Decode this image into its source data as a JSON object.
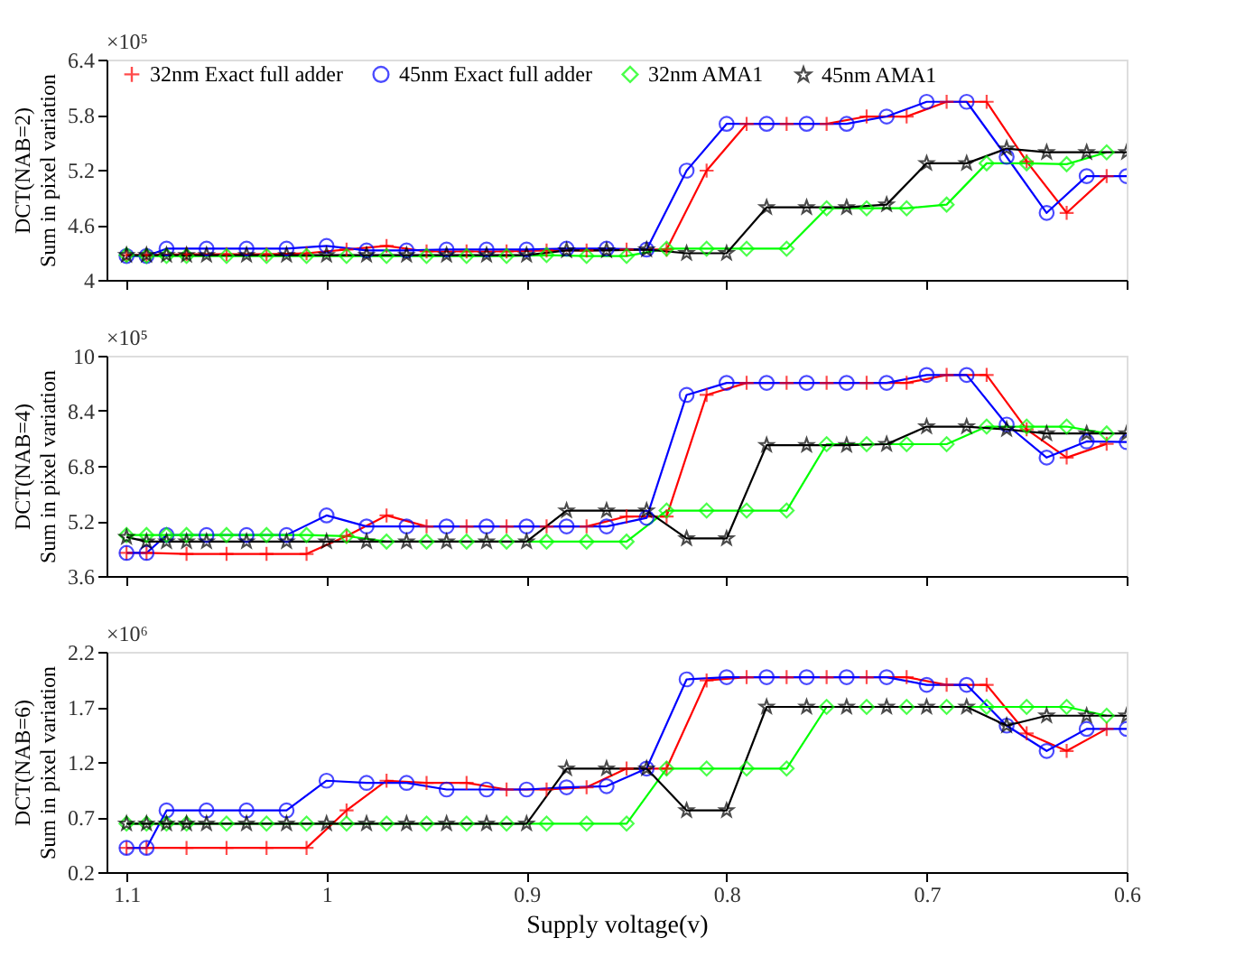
{
  "chart_data": [
    {
      "type": "line",
      "ylabel": "DCT(NAB=2)\nSum in pixel variation",
      "annotations": [
        "×10⁵"
      ],
      "xlim": [
        1.11,
        0.6
      ],
      "xticks": [
        1.1,
        1,
        0.9,
        0.8,
        0.7,
        0.6
      ],
      "ylim": [
        4,
        6.4
      ],
      "yticks": [
        4,
        4.6,
        5.2,
        5.8,
        6.4
      ],
      "tick_labels": "y",
      "legend": "top",
      "series": [
        {
          "name": "32nm Exact full adder",
          "color": "#ff0000",
          "marker": "cross",
          "x": [
            1.1,
            1.09,
            1.07,
            1.05,
            1.03,
            1.01,
            0.99,
            0.97,
            0.95,
            0.93,
            0.91,
            0.89,
            0.87,
            0.85,
            0.83,
            0.81,
            0.79,
            0.77,
            0.75,
            0.73,
            0.71,
            0.69,
            0.67,
            0.65,
            0.63,
            0.61
          ],
          "values": [
            4.27,
            4.27,
            4.28,
            4.28,
            4.28,
            4.29,
            4.33,
            4.37,
            4.31,
            4.31,
            4.31,
            4.32,
            4.32,
            4.33,
            4.33,
            5.19,
            5.7,
            5.7,
            5.7,
            5.78,
            5.78,
            5.94,
            5.94,
            5.29,
            4.73,
            5.13
          ]
        },
        {
          "name": "45nm Exact full adder",
          "color": "#0000ff",
          "marker": "circle",
          "x": [
            1.1,
            1.09,
            1.08,
            1.06,
            1.04,
            1.02,
            1.0,
            0.98,
            0.96,
            0.94,
            0.92,
            0.9,
            0.88,
            0.86,
            0.84,
            0.82,
            0.8,
            0.78,
            0.76,
            0.74,
            0.72,
            0.7,
            0.68,
            0.66,
            0.64,
            0.62,
            0.6
          ],
          "values": [
            4.26,
            4.26,
            4.34,
            4.34,
            4.34,
            4.34,
            4.37,
            4.32,
            4.32,
            4.33,
            4.33,
            4.33,
            4.34,
            4.34,
            4.33,
            5.19,
            5.7,
            5.7,
            5.7,
            5.7,
            5.78,
            5.94,
            5.94,
            5.34,
            4.73,
            5.13,
            5.13
          ]
        },
        {
          "name": "32nm AMA1",
          "color": "#00ff00",
          "marker": "diamond",
          "x": [
            1.1,
            1.09,
            1.08,
            1.07,
            1.05,
            1.03,
            1.01,
            0.99,
            0.97,
            0.95,
            0.93,
            0.91,
            0.89,
            0.87,
            0.85,
            0.83,
            0.81,
            0.79,
            0.77,
            0.75,
            0.73,
            0.71,
            0.69,
            0.67,
            0.65,
            0.63,
            0.61
          ],
          "values": [
            4.27,
            4.26,
            4.26,
            4.26,
            4.26,
            4.26,
            4.26,
            4.26,
            4.26,
            4.26,
            4.26,
            4.26,
            4.27,
            4.26,
            4.26,
            4.34,
            4.34,
            4.34,
            4.34,
            4.78,
            4.78,
            4.78,
            4.82,
            5.27,
            5.27,
            5.26,
            5.39
          ]
        },
        {
          "name": "45nm AMA1",
          "color": "#000000",
          "marker": "star",
          "x": [
            1.1,
            1.09,
            1.08,
            1.07,
            1.06,
            1.04,
            1.02,
            1.0,
            0.98,
            0.96,
            0.94,
            0.92,
            0.9,
            0.88,
            0.86,
            0.84,
            0.82,
            0.8,
            0.78,
            0.76,
            0.74,
            0.72,
            0.7,
            0.68,
            0.66,
            0.64,
            0.62,
            0.6
          ],
          "values": [
            4.27,
            4.27,
            4.27,
            4.27,
            4.27,
            4.27,
            4.27,
            4.27,
            4.27,
            4.27,
            4.27,
            4.27,
            4.27,
            4.32,
            4.32,
            4.33,
            4.29,
            4.29,
            4.79,
            4.79,
            4.79,
            4.82,
            5.27,
            5.27,
            5.43,
            5.39,
            5.39,
            5.39
          ]
        }
      ]
    },
    {
      "type": "line",
      "ylabel": "DCT(NAB=4)\nSum in pixel variation",
      "annotations": [
        "×10⁵"
      ],
      "xlim": [
        1.11,
        0.6
      ],
      "xticks": [
        1.1,
        1,
        0.9,
        0.8,
        0.7,
        0.6
      ],
      "ylim": [
        3.6,
        10
      ],
      "yticks": [
        3.6,
        5.2,
        6.8,
        8.4,
        10
      ],
      "tick_labels": "y",
      "series": [
        {
          "color": "#ff0000",
          "marker": "cross",
          "x": [
            1.1,
            1.09,
            1.07,
            1.05,
            1.03,
            1.01,
            0.99,
            0.97,
            0.95,
            0.93,
            0.91,
            0.89,
            0.87,
            0.85,
            0.83,
            0.81,
            0.79,
            0.77,
            0.75,
            0.73,
            0.71,
            0.69,
            0.67,
            0.65,
            0.63,
            0.61
          ],
          "values": [
            4.27,
            4.27,
            4.24,
            4.24,
            4.24,
            4.24,
            4.76,
            5.36,
            5.04,
            5.04,
            5.04,
            5.04,
            5.04,
            5.33,
            5.33,
            8.86,
            9.21,
            9.21,
            9.21,
            9.21,
            9.21,
            9.44,
            9.44,
            7.86,
            7.04,
            7.44
          ]
        },
        {
          "color": "#0000ff",
          "marker": "circle",
          "x": [
            1.1,
            1.09,
            1.08,
            1.06,
            1.04,
            1.02,
            1.0,
            0.98,
            0.96,
            0.94,
            0.92,
            0.9,
            0.88,
            0.86,
            0.84,
            0.82,
            0.8,
            0.78,
            0.76,
            0.74,
            0.72,
            0.7,
            0.68,
            0.66,
            0.64,
            0.62,
            0.6
          ],
          "values": [
            4.27,
            4.27,
            4.79,
            4.79,
            4.79,
            4.79,
            5.36,
            5.04,
            5.04,
            5.04,
            5.04,
            5.04,
            5.04,
            5.04,
            5.29,
            8.86,
            9.21,
            9.21,
            9.21,
            9.21,
            9.21,
            9.44,
            9.44,
            8.0,
            7.04,
            7.51,
            7.49
          ]
        },
        {
          "color": "#00ff00",
          "marker": "diamond",
          "x": [
            1.1,
            1.09,
            1.08,
            1.07,
            1.05,
            1.03,
            1.01,
            0.99,
            0.97,
            0.95,
            0.93,
            0.91,
            0.89,
            0.87,
            0.85,
            0.83,
            0.81,
            0.79,
            0.77,
            0.75,
            0.73,
            0.71,
            0.69,
            0.67,
            0.65,
            0.63,
            0.61
          ],
          "values": [
            4.79,
            4.79,
            4.79,
            4.79,
            4.79,
            4.79,
            4.79,
            4.76,
            4.6,
            4.6,
            4.6,
            4.6,
            4.6,
            4.6,
            4.6,
            5.5,
            5.5,
            5.5,
            5.5,
            7.43,
            7.43,
            7.43,
            7.43,
            7.94,
            7.94,
            7.94,
            7.74
          ]
        },
        {
          "color": "#000000",
          "marker": "star",
          "x": [
            1.1,
            1.09,
            1.08,
            1.07,
            1.06,
            1.04,
            1.02,
            1.0,
            0.98,
            0.96,
            0.94,
            0.92,
            0.9,
            0.88,
            0.86,
            0.84,
            0.82,
            0.8,
            0.78,
            0.76,
            0.74,
            0.72,
            0.7,
            0.68,
            0.66,
            0.64,
            0.62,
            0.6
          ],
          "values": [
            4.73,
            4.6,
            4.6,
            4.6,
            4.6,
            4.6,
            4.6,
            4.6,
            4.6,
            4.6,
            4.6,
            4.6,
            4.6,
            5.5,
            5.5,
            5.5,
            4.69,
            4.69,
            7.4,
            7.4,
            7.4,
            7.43,
            7.94,
            7.94,
            7.86,
            7.74,
            7.74,
            7.74
          ]
        }
      ]
    },
    {
      "type": "line",
      "ylabel": "DCT(NAB=6)\nSum in pixel variation",
      "xlabel": "Supply voltage(v)",
      "annotations": [
        "×10⁶"
      ],
      "xlim": [
        1.11,
        0.6
      ],
      "xticks": [
        1.1,
        1,
        0.9,
        0.8,
        0.7,
        0.6
      ],
      "ylim": [
        0.2,
        2.2
      ],
      "yticks": [
        0.2,
        0.7,
        1.2,
        1.7,
        2.2
      ],
      "series": [
        {
          "color": "#ff0000",
          "marker": "cross",
          "x": [
            1.1,
            1.09,
            1.07,
            1.05,
            1.03,
            1.01,
            0.99,
            0.97,
            0.95,
            0.93,
            0.91,
            0.89,
            0.87,
            0.85,
            0.83,
            0.81,
            0.79,
            0.77,
            0.75,
            0.73,
            0.71,
            0.69,
            0.67,
            0.65,
            0.63,
            0.61
          ],
          "values": [
            0.42,
            0.42,
            0.42,
            0.42,
            0.42,
            0.42,
            0.76,
            1.03,
            1.01,
            1.01,
            0.95,
            0.95,
            0.97,
            1.14,
            1.14,
            1.94,
            1.97,
            1.97,
            1.97,
            1.97,
            1.97,
            1.9,
            1.9,
            1.46,
            1.3,
            1.5
          ]
        },
        {
          "color": "#0000ff",
          "marker": "circle",
          "x": [
            1.1,
            1.09,
            1.08,
            1.06,
            1.04,
            1.02,
            1.0,
            0.98,
            0.96,
            0.94,
            0.92,
            0.9,
            0.88,
            0.86,
            0.84,
            0.82,
            0.8,
            0.78,
            0.76,
            0.74,
            0.72,
            0.7,
            0.68,
            0.66,
            0.64,
            0.62,
            0.6
          ],
          "values": [
            0.42,
            0.42,
            0.76,
            0.76,
            0.76,
            0.76,
            1.03,
            1.01,
            1.01,
            0.95,
            0.95,
            0.95,
            0.97,
            0.98,
            1.14,
            1.95,
            1.97,
            1.97,
            1.97,
            1.97,
            1.97,
            1.9,
            1.9,
            1.53,
            1.3,
            1.5,
            1.5
          ]
        },
        {
          "color": "#00ff00",
          "marker": "diamond",
          "x": [
            1.1,
            1.09,
            1.08,
            1.07,
            1.05,
            1.03,
            1.01,
            0.99,
            0.97,
            0.95,
            0.93,
            0.91,
            0.89,
            0.87,
            0.85,
            0.83,
            0.81,
            0.79,
            0.77,
            0.75,
            0.73,
            0.71,
            0.69,
            0.67,
            0.65,
            0.63,
            0.61
          ],
          "values": [
            0.64,
            0.64,
            0.64,
            0.64,
            0.64,
            0.64,
            0.64,
            0.64,
            0.64,
            0.64,
            0.64,
            0.64,
            0.64,
            0.64,
            0.64,
            1.14,
            1.14,
            1.14,
            1.14,
            1.7,
            1.7,
            1.7,
            1.7,
            1.7,
            1.7,
            1.7,
            1.62
          ]
        },
        {
          "color": "#000000",
          "marker": "star",
          "x": [
            1.1,
            1.09,
            1.08,
            1.07,
            1.06,
            1.04,
            1.02,
            1.0,
            0.98,
            0.96,
            0.94,
            0.92,
            0.9,
            0.88,
            0.86,
            0.84,
            0.82,
            0.8,
            0.78,
            0.76,
            0.74,
            0.72,
            0.7,
            0.68,
            0.66,
            0.64,
            0.62,
            0.6
          ],
          "values": [
            0.64,
            0.64,
            0.64,
            0.64,
            0.64,
            0.64,
            0.64,
            0.64,
            0.64,
            0.64,
            0.64,
            0.64,
            0.64,
            1.14,
            1.14,
            1.14,
            0.76,
            0.76,
            1.7,
            1.7,
            1.7,
            1.7,
            1.7,
            1.7,
            1.53,
            1.62,
            1.62,
            1.62
          ]
        }
      ]
    }
  ]
}
